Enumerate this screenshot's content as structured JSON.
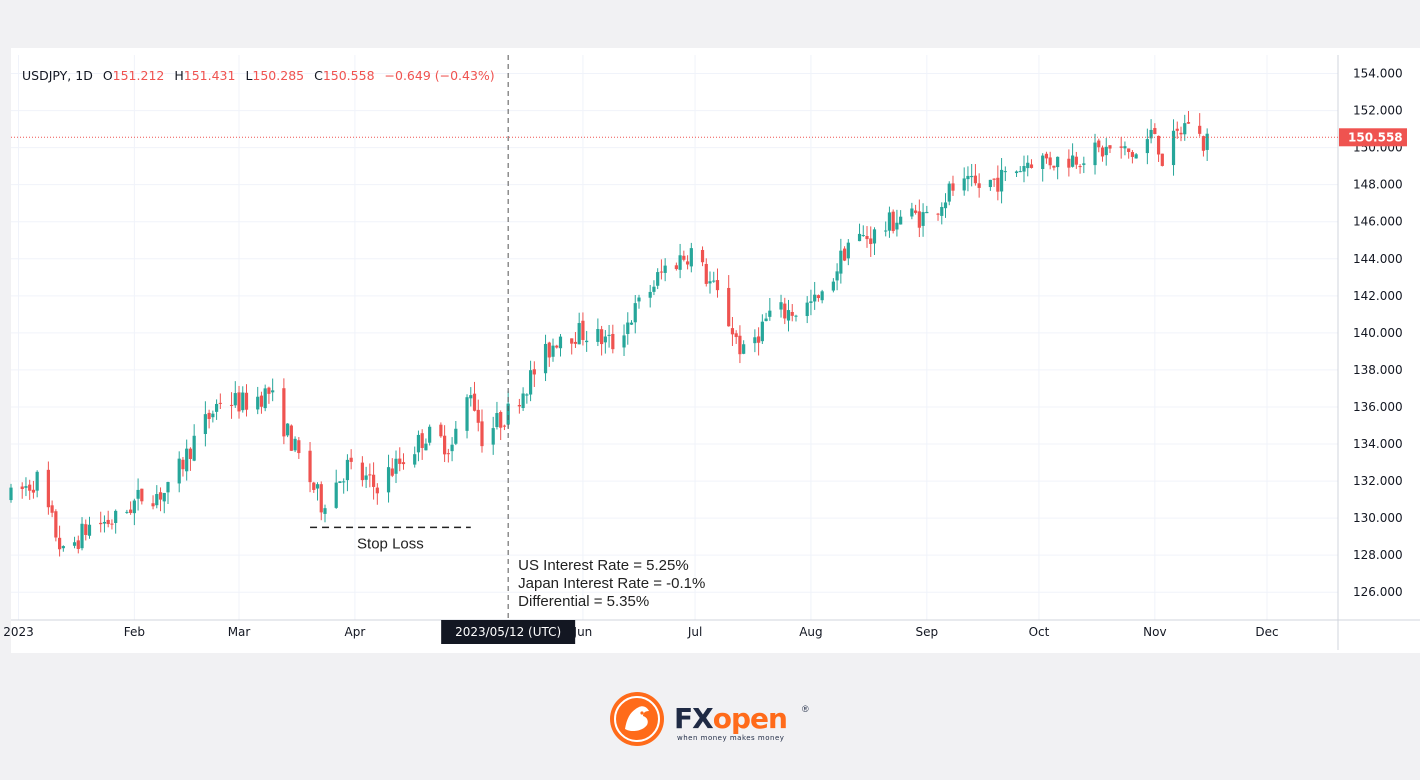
{
  "chart_data": {
    "type": "candlestick",
    "symbol_legend": {
      "symbol": "USDJPY, 1D",
      "open_label": "O",
      "open": "151.212",
      "high_label": "H",
      "high": "151.431",
      "low_label": "L",
      "low": "150.285",
      "close_label": "C",
      "close": "150.558",
      "change": "−0.649 (−0.43%)"
    },
    "y_ticks": [
      "154.000",
      "152.000",
      "150.000",
      "148.000",
      "146.000",
      "144.000",
      "142.000",
      "140.000",
      "138.000",
      "136.000",
      "134.000",
      "132.000",
      "130.000",
      "128.000",
      "126.000"
    ],
    "ylim": [
      124.5,
      155.0
    ],
    "x_ticks": [
      {
        "label": "2023",
        "date": "2023-01-01"
      },
      {
        "label": "Feb",
        "date": "2023-02-01"
      },
      {
        "label": "Mar",
        "date": "2023-03-01"
      },
      {
        "label": "Apr",
        "date": "2023-04-01"
      },
      {
        "label": "Jun",
        "date": "2023-06-01"
      },
      {
        "label": "Jul",
        "date": "2023-07-01"
      },
      {
        "label": "Aug",
        "date": "2023-08-01"
      },
      {
        "label": "Sep",
        "date": "2023-09-01"
      },
      {
        "label": "Oct",
        "date": "2023-10-01"
      },
      {
        "label": "Nov",
        "date": "2023-11-01"
      },
      {
        "label": "Dec",
        "date": "2023-12-01"
      }
    ],
    "xlim": [
      "2022-12-30",
      "2023-12-20"
    ],
    "price_trend": [
      [
        "2022-12-30",
        131.1
      ],
      [
        "2023-01-06",
        132.1
      ],
      [
        "2023-01-13",
        128.0
      ],
      [
        "2023-01-20",
        129.6
      ],
      [
        "2023-01-27",
        129.9
      ],
      [
        "2023-02-03",
        131.2
      ],
      [
        "2023-02-10",
        131.4
      ],
      [
        "2023-02-17",
        134.2
      ],
      [
        "2023-02-24",
        136.4
      ],
      [
        "2023-03-02",
        136.2
      ],
      [
        "2023-03-09",
        136.8
      ],
      [
        "2023-03-16",
        133.7
      ],
      [
        "2023-03-23",
        130.8
      ],
      [
        "2023-03-30",
        132.8
      ],
      [
        "2023-04-06",
        131.7
      ],
      [
        "2023-04-13",
        133.0
      ],
      [
        "2023-04-20",
        134.5
      ],
      [
        "2023-04-27",
        133.9
      ],
      [
        "2023-05-02",
        137.0
      ],
      [
        "2023-05-05",
        134.4
      ],
      [
        "2023-05-12",
        135.7
      ],
      [
        "2023-05-19",
        137.9
      ],
      [
        "2023-05-26",
        140.0
      ],
      [
        "2023-06-02",
        140.0
      ],
      [
        "2023-06-09",
        139.4
      ],
      [
        "2023-06-16",
        141.5
      ],
      [
        "2023-06-23",
        143.5
      ],
      [
        "2023-06-30",
        144.4
      ],
      [
        "2023-07-07",
        142.0
      ],
      [
        "2023-07-14",
        138.8
      ],
      [
        "2023-07-21",
        141.0
      ],
      [
        "2023-07-28",
        141.2
      ],
      [
        "2023-08-04",
        141.8
      ],
      [
        "2023-08-11",
        144.9
      ],
      [
        "2023-08-18",
        145.3
      ],
      [
        "2023-08-25",
        146.3
      ],
      [
        "2023-09-01",
        146.3
      ],
      [
        "2023-09-08",
        147.8
      ],
      [
        "2023-09-15",
        147.9
      ],
      [
        "2023-09-22",
        148.4
      ],
      [
        "2023-09-29",
        149.4
      ],
      [
        "2023-10-06",
        149.3
      ],
      [
        "2023-10-13",
        149.6
      ],
      [
        "2023-10-20",
        149.9
      ],
      [
        "2023-10-27",
        149.6
      ],
      [
        "2023-11-01",
        150.9
      ],
      [
        "2023-11-03",
        149.4
      ],
      [
        "2023-11-10",
        151.5
      ],
      [
        "2023-11-14",
        150.2
      ],
      [
        "2023-11-15",
        150.6
      ]
    ],
    "current_price_label": "150.558",
    "marker": {
      "date": "2023-05-12",
      "label": "2023/05/12 (UTC)"
    },
    "stop_loss": {
      "price": 129.5,
      "from": "2023-03-20",
      "to": "2023-05-02",
      "label": "Stop Loss"
    },
    "annotations": [
      "US Interest Rate = 5.25%",
      "Japan Interest Rate = -0.1%",
      "Differential = 5.35%"
    ],
    "colors": {
      "up": "#26a69a",
      "down": "#ef5350",
      "grid": "#f0f3fa",
      "axis": "#131722",
      "price_line": "#ef5350",
      "marker_bg": "#131722"
    }
  },
  "brand": {
    "name_part1": "FX",
    "name_part2": "open",
    "tagline": "when money makes money",
    "registered": "®"
  }
}
